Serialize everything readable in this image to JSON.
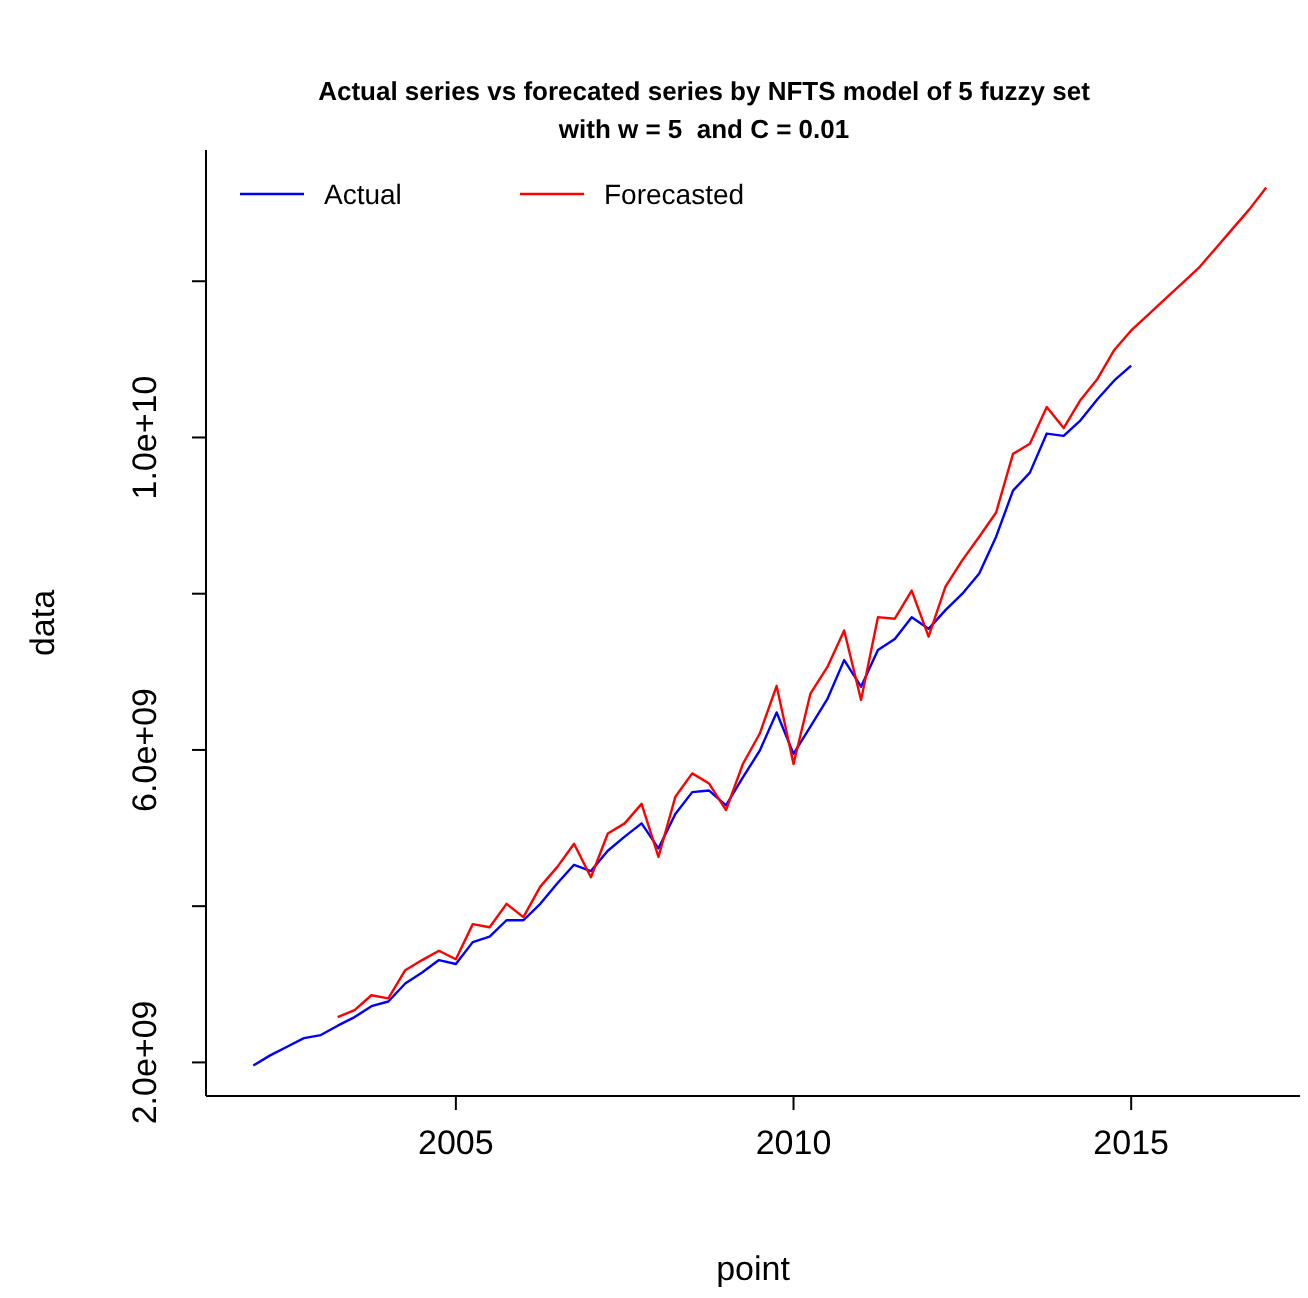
{
  "chart_data": {
    "type": "line",
    "title": "Actual series vs forecated series by NFTS model of 5 fuzzy set\nwith w = 5  and C = 0.01",
    "xlabel": "point",
    "ylabel": "data",
    "xlim": [
      2001.3,
      2017.5
    ],
    "xticks": [
      2005,
      2010,
      2015
    ],
    "ylim": [
      1570000000.0,
      13680000000.0
    ],
    "yticks": [
      {
        "value": 2000000000.0,
        "label": "2.0e+09"
      },
      {
        "value": 4000000000.0,
        "label": null
      },
      {
        "value": 6000000000.0,
        "label": "6.0e+09"
      },
      {
        "value": 8000000000.0,
        "label": null
      },
      {
        "value": 10000000000.0,
        "label": "1.0e+10"
      },
      {
        "value": 12000000000.0,
        "label": null
      }
    ],
    "legend": "top left",
    "grid": false,
    "marker": "none",
    "line_style": "solid",
    "series": [
      {
        "name": "Actual",
        "color": "#0000ff",
        "x": [
          2002,
          2002.25,
          2002.5,
          2002.75,
          2003,
          2003.25,
          2003.5,
          2003.75,
          2004,
          2004.25,
          2004.5,
          2004.75,
          2005,
          2005.25,
          2005.5,
          2005.75,
          2006,
          2006.25,
          2006.5,
          2006.75,
          2007,
          2007.25,
          2007.5,
          2007.75,
          2008,
          2008.25,
          2008.5,
          2008.75,
          2009,
          2009.25,
          2009.5,
          2009.75,
          2010,
          2010.25,
          2010.5,
          2010.75,
          2011,
          2011.25,
          2011.5,
          2011.75,
          2012,
          2012.25,
          2012.5,
          2012.75,
          2013,
          2013.25,
          2013.5,
          2013.75,
          2014,
          2014.25,
          2014.5,
          2014.75,
          2015
        ],
        "values": [
          1960000000.0,
          2090000000.0,
          2200000000.0,
          2310000000.0,
          2350000000.0,
          2470000000.0,
          2580000000.0,
          2720000000.0,
          2780000000.0,
          3010000000.0,
          3150000000.0,
          3310000000.0,
          3260000000.0,
          3540000000.0,
          3610000000.0,
          3820000000.0,
          3820000000.0,
          4030000000.0,
          4290000000.0,
          4530000000.0,
          4450000000.0,
          4710000000.0,
          4890000000.0,
          5060000000.0,
          4740000000.0,
          5180000000.0,
          5460000000.0,
          5480000000.0,
          5290000000.0,
          5650000000.0,
          5990000000.0,
          6480000000.0,
          5950000000.0,
          6300000000.0,
          6650000000.0,
          7150000000.0,
          6810000000.0,
          7280000000.0,
          7420000000.0,
          7700000000.0,
          7550000000.0,
          7790000000.0,
          8000000000.0,
          8260000000.0,
          8730000000.0,
          9320000000.0,
          9550000000.0,
          10050000000.0,
          10020000000.0,
          10220000000.0,
          10490000000.0,
          10730000000.0,
          10920000000.0
        ]
      },
      {
        "name": "Forecasted",
        "color": "#ff0000",
        "x": [
          2003.25,
          2003.5,
          2003.75,
          2004,
          2004.25,
          2004.5,
          2004.75,
          2005,
          2005.25,
          2005.5,
          2005.75,
          2006,
          2006.25,
          2006.5,
          2006.75,
          2007,
          2007.25,
          2007.5,
          2007.75,
          2008,
          2008.25,
          2008.5,
          2008.75,
          2009,
          2009.25,
          2009.5,
          2009.75,
          2010,
          2010.25,
          2010.5,
          2010.75,
          2011,
          2011.25,
          2011.5,
          2011.75,
          2012,
          2012.25,
          2012.5,
          2012.75,
          2013,
          2013.25,
          2013.5,
          2013.75,
          2014,
          2014.25,
          2014.5,
          2014.75,
          2015,
          2015.25,
          2015.5,
          2015.75,
          2016,
          2016.25,
          2016.5,
          2016.75,
          2017
        ],
        "values": [
          2580000000.0,
          2670000000.0,
          2860000000.0,
          2820000000.0,
          3180000000.0,
          3310000000.0,
          3430000000.0,
          3320000000.0,
          3770000000.0,
          3730000000.0,
          4030000000.0,
          3860000000.0,
          4250000000.0,
          4500000000.0,
          4800000000.0,
          4370000000.0,
          4930000000.0,
          5060000000.0,
          5310000000.0,
          4630000000.0,
          5400000000.0,
          5700000000.0,
          5570000000.0,
          5230000000.0,
          5820000000.0,
          6210000000.0,
          6820000000.0,
          5820000000.0,
          6720000000.0,
          7060000000.0,
          7530000000.0,
          6640000000.0,
          7700000000.0,
          7680000000.0,
          8040000000.0,
          7450000000.0,
          8090000000.0,
          8430000000.0,
          8730000000.0,
          9040000000.0,
          9790000000.0,
          9920000000.0,
          10390000000.0,
          10120000000.0,
          10480000000.0,
          10750000000.0,
          11120000000.0,
          11370000000.0,
          11570000000.0,
          11770000000.0,
          11970000000.0,
          12170000000.0,
          12420000000.0,
          12670000000.0,
          12920000000.0,
          13200000000.0
        ]
      }
    ]
  }
}
